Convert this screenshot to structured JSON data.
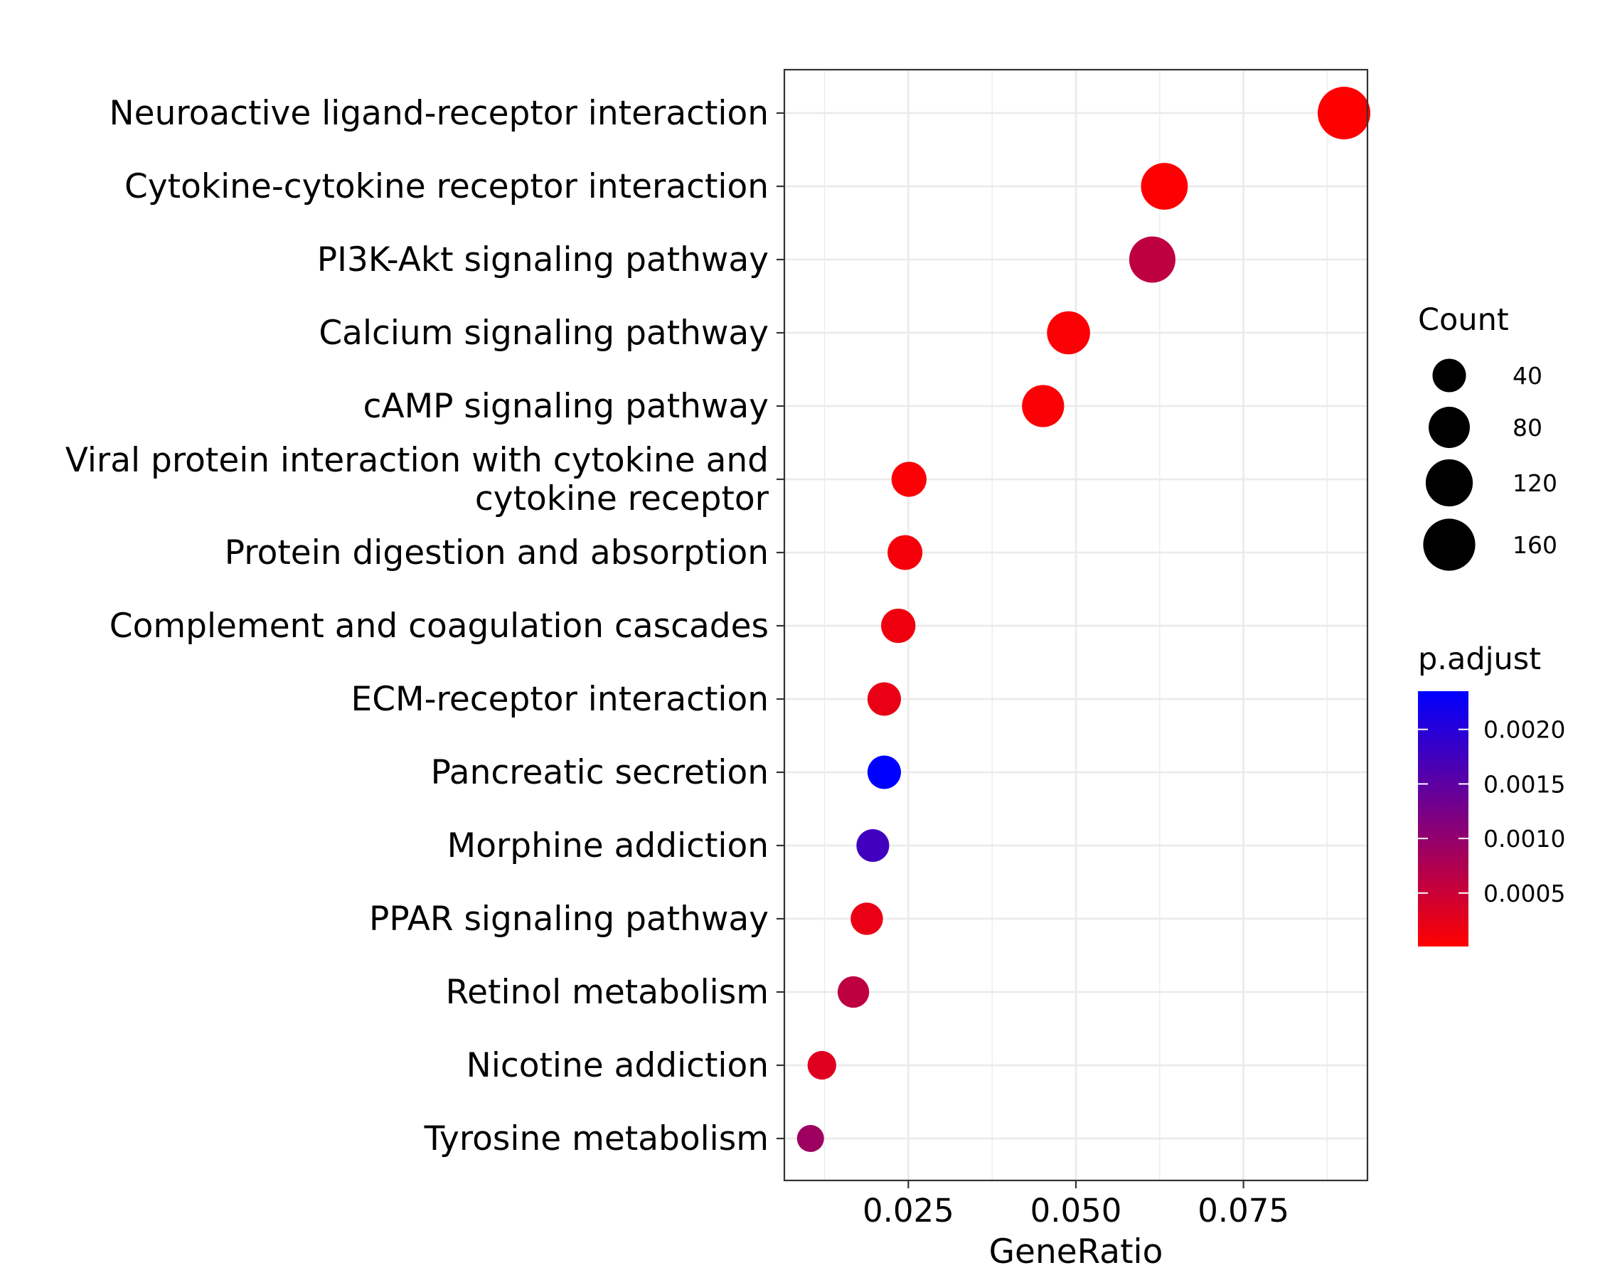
{
  "chart_data": {
    "type": "scatter",
    "xlabel": "GeneRatio",
    "ylabel": "",
    "xlim": [
      0.0065,
      0.0935
    ],
    "x_ticks": [
      0.025,
      0.05,
      0.075
    ],
    "x_tick_labels": [
      "0.025",
      "0.050",
      "0.075"
    ],
    "grid": true,
    "categories": [
      "Neuroactive ligand-receptor interaction",
      "Cytokine-cytokine receptor interaction",
      "PI3K-Akt signaling pathway",
      "Calcium signaling pathway",
      "cAMP signaling pathway",
      "Viral protein interaction with cytokine and cytokine receptor",
      "Protein digestion and absorption",
      "Complement and coagulation cascades",
      "ECM-receptor interaction",
      "Pancreatic secretion",
      "Morphine addiction",
      "PPAR signaling pathway",
      "Retinol metabolism",
      "Nicotine addiction",
      "Tyrosine metabolism"
    ],
    "category_lines": [
      [
        "Neuroactive ligand-receptor interaction"
      ],
      [
        "Cytokine-cytokine receptor interaction"
      ],
      [
        "PI3K-Akt signaling pathway"
      ],
      [
        "Calcium signaling pathway"
      ],
      [
        "cAMP signaling pathway"
      ],
      [
        "Viral protein interaction with cytokine and",
        "cytokine receptor"
      ],
      [
        "Protein digestion and absorption"
      ],
      [
        "Complement and coagulation cascades"
      ],
      [
        "ECM-receptor interaction"
      ],
      [
        "Pancreatic secretion"
      ],
      [
        "Morphine addiction"
      ],
      [
        "PPAR signaling pathway"
      ],
      [
        "Retinol metabolism"
      ],
      [
        "Nicotine addiction"
      ],
      [
        "Tyrosine metabolism"
      ]
    ],
    "points": [
      {
        "term": "Neuroactive ligand-receptor interaction",
        "gene_ratio": 0.09,
        "count": 165,
        "p_adjust": 1e-05
      },
      {
        "term": "Cytokine-cytokine receptor interaction",
        "gene_ratio": 0.0632,
        "count": 118,
        "p_adjust": 2e-05
      },
      {
        "term": "PI3K-Akt signaling pathway",
        "gene_ratio": 0.0614,
        "count": 114,
        "p_adjust": 0.0006
      },
      {
        "term": "Calcium signaling pathway",
        "gene_ratio": 0.0489,
        "count": 92,
        "p_adjust": 5e-05
      },
      {
        "term": "cAMP signaling pathway",
        "gene_ratio": 0.0451,
        "count": 86,
        "p_adjust": 5e-05
      },
      {
        "term": "Viral protein interaction with cytokine and cytokine receptor",
        "gene_ratio": 0.0251,
        "count": 47,
        "p_adjust": 5e-05
      },
      {
        "term": "Protein digestion and absorption",
        "gene_ratio": 0.0245,
        "count": 46,
        "p_adjust": 0.0001
      },
      {
        "term": "Complement and coagulation cascades",
        "gene_ratio": 0.0235,
        "count": 44,
        "p_adjust": 0.00015
      },
      {
        "term": "ECM-receptor interaction",
        "gene_ratio": 0.0214,
        "count": 40,
        "p_adjust": 0.0002
      },
      {
        "term": "Pancreatic secretion",
        "gene_ratio": 0.0214,
        "count": 40,
        "p_adjust": 0.00235
      },
      {
        "term": "Morphine addiction",
        "gene_ratio": 0.0197,
        "count": 37,
        "p_adjust": 0.00175
      },
      {
        "term": "PPAR signaling pathway",
        "gene_ratio": 0.0188,
        "count": 35,
        "p_adjust": 0.0002
      },
      {
        "term": "Retinol metabolism",
        "gene_ratio": 0.0168,
        "count": 32,
        "p_adjust": 0.0006
      },
      {
        "term": "Nicotine addiction",
        "gene_ratio": 0.0121,
        "count": 22,
        "p_adjust": 0.0003
      },
      {
        "term": "Tyrosine metabolism",
        "gene_ratio": 0.0104,
        "count": 17,
        "p_adjust": 0.0009
      }
    ],
    "size_legend": {
      "title": "Count",
      "breaks": [
        40,
        80,
        120,
        160
      ],
      "labels": [
        "40",
        "80",
        "120",
        "160"
      ]
    },
    "color_legend": {
      "title": "p.adjust",
      "low_color": "#ff0000",
      "high_color": "#0000ff",
      "range": [
        1e-05,
        0.00235
      ],
      "breaks": [
        0.0005,
        0.001,
        0.0015,
        0.002
      ],
      "labels": [
        "0.0005",
        "0.0010",
        "0.0015",
        "0.0020"
      ]
    }
  }
}
